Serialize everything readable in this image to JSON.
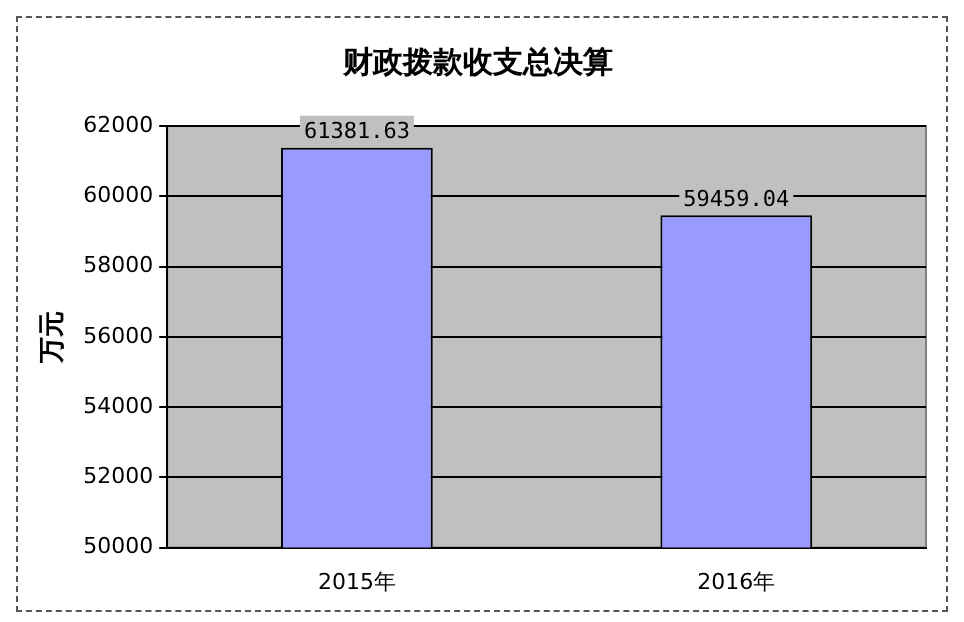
{
  "chart_data": {
    "type": "bar",
    "title": "财政拨款收支总决算",
    "ylabel": "万元",
    "categories": [
      "2015年",
      "2016年"
    ],
    "values": [
      61381.63,
      59459.04
    ],
    "color": "#9999ff",
    "ylim": [
      50000,
      62000
    ],
    "yticks": [
      50000,
      52000,
      54000,
      56000,
      58000,
      60000,
      62000
    ],
    "grid": "y",
    "data_labels": true
  }
}
